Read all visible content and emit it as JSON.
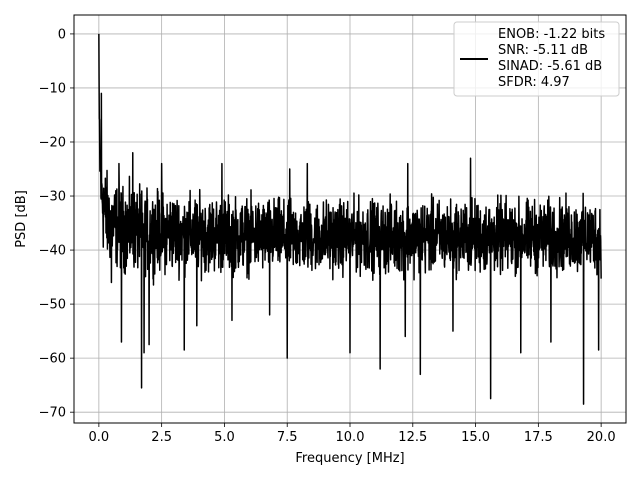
{
  "chart_data": {
    "type": "line",
    "title": "",
    "xlabel": "Frequency [MHz]",
    "ylabel": "PSD [dB]",
    "xlim": [
      -0.99,
      20.99
    ],
    "ylim": [
      -72,
      3.5
    ],
    "xticks": [
      0.0,
      2.5,
      5.0,
      7.5,
      10.0,
      12.5,
      15.0,
      17.5,
      20.0
    ],
    "xtick_labels": [
      "0.0",
      "2.5",
      "5.0",
      "7.5",
      "10.0",
      "12.5",
      "15.0",
      "17.5",
      "20.0"
    ],
    "yticks": [
      0,
      -10,
      -20,
      -30,
      -40,
      -50,
      -60,
      -70
    ],
    "ytick_labels": [
      "0",
      "−10",
      "−20",
      "−30",
      "−40",
      "−50",
      "−60",
      "−70"
    ],
    "grid": true,
    "legend": {
      "placement": "top-right",
      "entries": [
        "ENOB: -1.22 bits",
        "SNR: -5.11 dB",
        "SINAD: -5.61 dB",
        "SFDR: 4.97"
      ]
    },
    "series": [
      {
        "color": "#000000",
        "envelope": {
          "x": [
            0.0,
            0.05,
            0.1,
            0.15,
            0.2,
            0.3,
            0.5,
            1.0,
            2.0,
            4.0,
            8.0,
            12.0,
            16.0,
            20.0
          ],
          "upper": [
            0.0,
            -11,
            -15,
            -17,
            -19,
            -22,
            -24,
            -25,
            -26,
            -27,
            -28,
            -28,
            -28,
            -28
          ],
          "lower": [
            -30,
            -38,
            -42,
            -44,
            -45,
            -46,
            -46,
            -47,
            -47,
            -47,
            -47,
            -47,
            -47,
            -47
          ]
        },
        "peaks": [
          {
            "x": 0.0,
            "y": 0.0
          },
          {
            "x": 0.1,
            "y": -11
          },
          {
            "x": 0.8,
            "y": -24
          },
          {
            "x": 1.35,
            "y": -22
          },
          {
            "x": 2.5,
            "y": -24
          },
          {
            "x": 4.9,
            "y": -24
          },
          {
            "x": 7.6,
            "y": -25
          },
          {
            "x": 8.3,
            "y": -24
          },
          {
            "x": 12.3,
            "y": -24
          },
          {
            "x": 14.8,
            "y": -23
          }
        ],
        "dips": [
          {
            "x": 0.5,
            "y": -46
          },
          {
            "x": 0.9,
            "y": -57
          },
          {
            "x": 1.7,
            "y": -65.5
          },
          {
            "x": 1.8,
            "y": -59
          },
          {
            "x": 2.0,
            "y": -57.5
          },
          {
            "x": 3.4,
            "y": -58.5
          },
          {
            "x": 3.9,
            "y": -54
          },
          {
            "x": 5.3,
            "y": -53
          },
          {
            "x": 6.8,
            "y": -52
          },
          {
            "x": 7.5,
            "y": -60
          },
          {
            "x": 10.0,
            "y": -59
          },
          {
            "x": 11.2,
            "y": -62
          },
          {
            "x": 12.2,
            "y": -56
          },
          {
            "x": 12.8,
            "y": -63
          },
          {
            "x": 14.1,
            "y": -55
          },
          {
            "x": 15.6,
            "y": -67.5
          },
          {
            "x": 16.8,
            "y": -59
          },
          {
            "x": 18.0,
            "y": -57
          },
          {
            "x": 19.3,
            "y": -68.5
          },
          {
            "x": 19.9,
            "y": -58.5
          }
        ]
      }
    ]
  }
}
